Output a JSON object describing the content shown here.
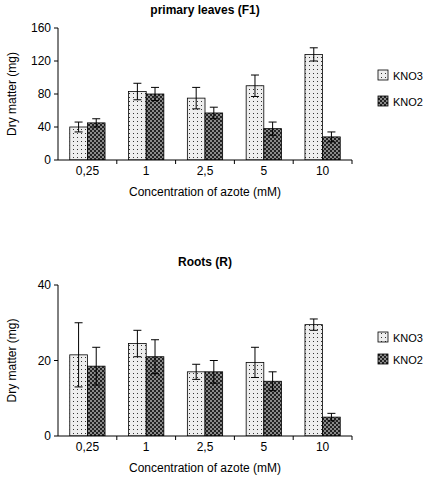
{
  "chart_data": [
    {
      "type": "bar",
      "title": "primary leaves (F1)",
      "x_label": "Concentration of azote (mM)",
      "y_label": "Dry matter (mg)",
      "categories": [
        "0,25",
        "1",
        "2,5",
        "5",
        "10"
      ],
      "series": [
        {
          "name": "KNO3",
          "color": "#eeeeee",
          "values": [
            40,
            83,
            75,
            90,
            128
          ],
          "errors": [
            6,
            10,
            13,
            13,
            8
          ]
        },
        {
          "name": "KNO2",
          "color": "#8a8a8a",
          "values": [
            45,
            80,
            57,
            38,
            28
          ],
          "errors": [
            5,
            8,
            7,
            8,
            6
          ]
        }
      ],
      "ylim": [
        0,
        160
      ],
      "yticks": [
        0,
        40,
        80,
        120,
        160
      ],
      "grid": false,
      "legend": "right"
    },
    {
      "type": "bar",
      "title": "Roots (R)",
      "x_label": "Concentration of azote (mM)",
      "y_label": "Dry matter (mg)",
      "categories": [
        "0,25",
        "1",
        "2,5",
        "5",
        "10"
      ],
      "series": [
        {
          "name": "KNO3",
          "color": "#eeeeee",
          "values": [
            21.5,
            24.5,
            17,
            19.5,
            29.5
          ],
          "errors": [
            8.5,
            3.5,
            2,
            4,
            1.5
          ]
        },
        {
          "name": "KNO2",
          "color": "#8a8a8a",
          "values": [
            18.5,
            21,
            17,
            14.5,
            5
          ],
          "errors": [
            5,
            4.5,
            3,
            2.5,
            1
          ]
        }
      ],
      "ylim": [
        0,
        40
      ],
      "yticks": [
        0,
        20,
        40
      ],
      "grid": false,
      "legend": "right"
    }
  ]
}
